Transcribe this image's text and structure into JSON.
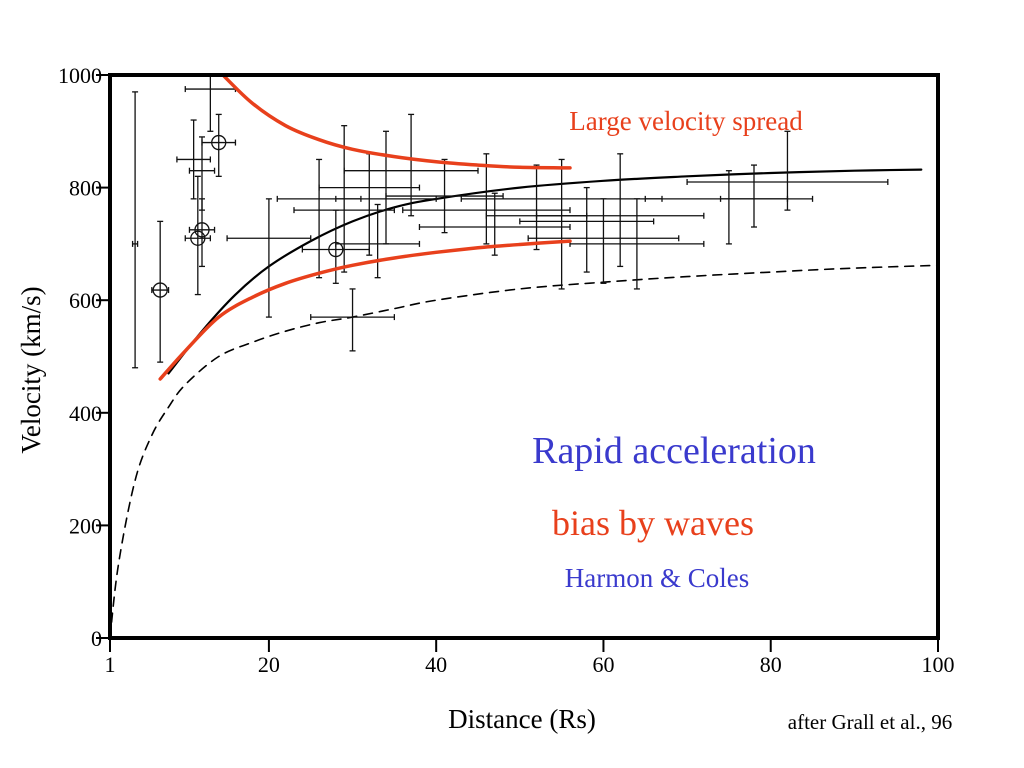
{
  "chart_data": {
    "type": "scatter",
    "title": "",
    "xlabel": "Distance (Rs)",
    "ylabel": "Velocity (km/s)",
    "xlim": [
      1,
      100
    ],
    "ylim": [
      0,
      1000
    ],
    "x_ticks": [
      {
        "value": 1,
        "label": "1"
      },
      {
        "value": 20,
        "label": "20"
      },
      {
        "value": 40,
        "label": "40"
      },
      {
        "value": 60,
        "label": "60"
      },
      {
        "value": 80,
        "label": "80"
      },
      {
        "value": 100,
        "label": "100"
      }
    ],
    "y_ticks": [
      {
        "value": 0,
        "label": "0"
      },
      {
        "value": 200,
        "label": "200"
      },
      {
        "value": 400,
        "label": "400"
      },
      {
        "value": 600,
        "label": "600"
      },
      {
        "value": 800,
        "label": "800"
      },
      {
        "value": 1000,
        "label": "1000"
      }
    ],
    "grid": false,
    "annotations": {
      "spread": {
        "text": "Large velocity spread",
        "color": "#e8401c"
      },
      "rapid": {
        "text": "Rapid acceleration",
        "color": "#3a3acd"
      },
      "bias": {
        "text": "bias by waves",
        "color": "#e8401c"
      },
      "harmon": {
        "text": "Harmon & Coles",
        "color": "#3a3acd"
      },
      "credit": {
        "text": "after Grall et al., 96"
      }
    },
    "series": [
      {
        "style": "solid-black",
        "x": [
          8,
          12,
          16,
          20,
          25,
          30,
          35,
          40,
          50,
          60,
          70,
          80,
          90,
          98
        ],
        "y": [
          470,
          545,
          610,
          660,
          705,
          740,
          765,
          780,
          800,
          812,
          820,
          826,
          830,
          832
        ]
      },
      {
        "style": "dashed-black",
        "x": [
          1,
          2,
          4,
          6,
          8,
          10,
          14,
          18,
          22,
          26,
          30,
          35,
          40,
          50,
          60,
          70,
          80,
          90,
          100
        ],
        "y": [
          0,
          130,
          280,
          360,
          410,
          450,
          500,
          525,
          545,
          560,
          570,
          585,
          600,
          620,
          632,
          642,
          650,
          657,
          662
        ]
      },
      {
        "style": "red-upper",
        "x": [
          14.5,
          18,
          22,
          26,
          30,
          35,
          40,
          45,
          50,
          56
        ],
        "y": [
          1000,
          950,
          910,
          885,
          868,
          855,
          846,
          840,
          836,
          835
        ]
      },
      {
        "style": "red-lower",
        "x": [
          7,
          10,
          14,
          18,
          22,
          26,
          30,
          35,
          40,
          45,
          50,
          56
        ],
        "y": [
          460,
          510,
          570,
          605,
          630,
          648,
          662,
          675,
          685,
          693,
          699,
          705
        ]
      }
    ],
    "measurements": [
      {
        "x": 7,
        "y": 618,
        "xerr": 1,
        "ylow": 490,
        "yhigh": 740,
        "marker": "circle"
      },
      {
        "x": 4,
        "y": 700,
        "xerr": 0.3,
        "ylow": 480,
        "yhigh": 970
      },
      {
        "x": 11,
        "y": 850,
        "xerr": 2,
        "ylow": 780,
        "yhigh": 920
      },
      {
        "x": 11.5,
        "y": 710,
        "xerr": 1.5,
        "ylow": 610,
        "yhigh": 820,
        "marker": "circle"
      },
      {
        "x": 12,
        "y": 725,
        "xerr": 1.5,
        "ylow": 660,
        "yhigh": 780,
        "marker": "circle"
      },
      {
        "x": 12,
        "y": 830,
        "xerr": 1.5,
        "ylow": 760,
        "yhigh": 890
      },
      {
        "x": 13,
        "y": 975,
        "xerr": 3,
        "ylow": 900,
        "yhigh": 1000
      },
      {
        "x": 14,
        "y": 880,
        "xerr": 2,
        "ylow": 820,
        "yhigh": 930,
        "marker": "circle"
      },
      {
        "x": 20,
        "y": 710,
        "xerr": 5,
        "ylow": 570,
        "yhigh": 780
      },
      {
        "x": 26,
        "y": 780,
        "xerr": 5,
        "ylow": 640,
        "yhigh": 850
      },
      {
        "x": 29,
        "y": 760,
        "xerr": 6,
        "ylow": 650,
        "yhigh": 910
      },
      {
        "x": 28,
        "y": 690,
        "xerr": 4,
        "ylow": 630,
        "yhigh": 760,
        "marker": "circle"
      },
      {
        "x": 30,
        "y": 570,
        "xerr": 5,
        "ylow": 510,
        "yhigh": 620
      },
      {
        "x": 32,
        "y": 800,
        "xerr": 6,
        "ylow": 680,
        "yhigh": 860
      },
      {
        "x": 33,
        "y": 700,
        "xerr": 5,
        "ylow": 640,
        "yhigh": 770
      },
      {
        "x": 34,
        "y": 780,
        "xerr": 6,
        "ylow": 700,
        "yhigh": 900
      },
      {
        "x": 37,
        "y": 830,
        "xerr": 8,
        "ylow": 750,
        "yhigh": 930
      },
      {
        "x": 41,
        "y": 785,
        "xerr": 7,
        "ylow": 720,
        "yhigh": 850
      },
      {
        "x": 46,
        "y": 760,
        "xerr": 10,
        "ylow": 700,
        "yhigh": 860
      },
      {
        "x": 47,
        "y": 730,
        "xerr": 9,
        "ylow": 680,
        "yhigh": 790
      },
      {
        "x": 52,
        "y": 750,
        "xerr": 6,
        "ylow": 690,
        "yhigh": 840
      },
      {
        "x": 55,
        "y": 780,
        "xerr": 12,
        "ylow": 620,
        "yhigh": 850
      },
      {
        "x": 58,
        "y": 740,
        "xerr": 8,
        "ylow": 650,
        "yhigh": 800
      },
      {
        "x": 60,
        "y": 710,
        "xerr": 9,
        "ylow": 630,
        "yhigh": 780
      },
      {
        "x": 62,
        "y": 750,
        "xerr": 10,
        "ylow": 660,
        "yhigh": 860
      },
      {
        "x": 64,
        "y": 700,
        "xerr": 8,
        "ylow": 620,
        "yhigh": 780
      },
      {
        "x": 75,
        "y": 780,
        "xerr": 10,
        "ylow": 700,
        "yhigh": 830
      },
      {
        "x": 78,
        "y": 780,
        "xerr": 4,
        "ylow": 730,
        "yhigh": 840
      },
      {
        "x": 82,
        "y": 810,
        "xerr": 12,
        "ylow": 760,
        "yhigh": 900
      }
    ]
  }
}
